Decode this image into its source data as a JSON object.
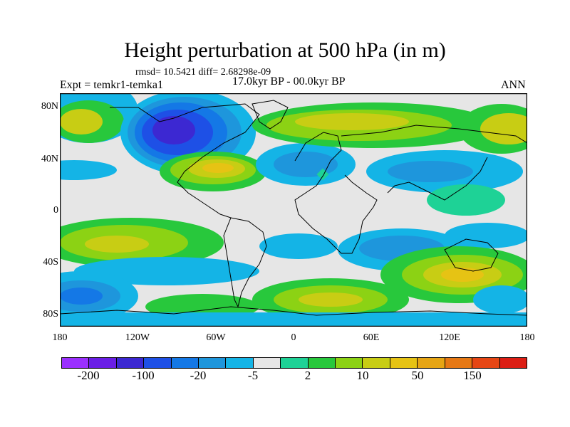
{
  "header": {
    "title": "Height perturbation at 500 hPa (in m)",
    "stats": "rmsd= 10.5421 diff= 2.68298e-09",
    "experiment": "Expt = temkr1-temka1",
    "period": "17.0kyr BP - 00.0kyr BP",
    "season": "ANN"
  },
  "axes": {
    "y_ticks": [
      "80N",
      "40N",
      "0",
      "40S",
      "80S"
    ],
    "x_ticks": [
      "180",
      "120W",
      "60W",
      "0",
      "60E",
      "120E",
      "180"
    ]
  },
  "colorbar": {
    "labels": [
      "-200",
      "-100",
      "-20",
      "-5",
      "2",
      "10",
      "50",
      "150"
    ],
    "colors": [
      "#9b30ff",
      "#6a1ee6",
      "#3c28d2",
      "#1e50e6",
      "#1478e6",
      "#1e96dc",
      "#14b4e6",
      "#e6e6e6",
      "#1ed296",
      "#28c83c",
      "#8cd214",
      "#c8cd14",
      "#e6c314",
      "#e6a514",
      "#e67814",
      "#e64614",
      "#dc1e14"
    ]
  },
  "colors": {
    "land_outline": "#000000",
    "near_zero": "#e6e6e6"
  }
}
